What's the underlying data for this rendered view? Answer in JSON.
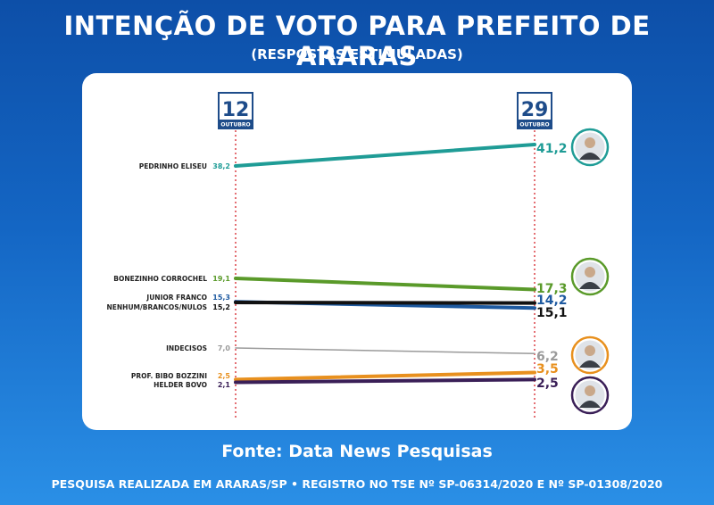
{
  "header": {
    "title": "INTENÇÃO DE VOTO PARA PREFEITO DE ARARAS",
    "subtitle": "(RESPOSTAS ESTIMULADAS)"
  },
  "chart_data": {
    "type": "line",
    "x": [
      {
        "day": "12",
        "month": "OUTUBRO"
      },
      {
        "day": "29",
        "month": "OUTUBRO"
      }
    ],
    "series": [
      {
        "name": "PEDRINHO ELISEU",
        "values": [
          38.2,
          41.2
        ],
        "labels": [
          "38,2",
          "41,2"
        ],
        "color": "#1f9c96",
        "has_photo": true,
        "photo_icon": "candidate-photo-icon"
      },
      {
        "name": "BONEZINHO CORROCHEL",
        "values": [
          19.1,
          17.3
        ],
        "labels": [
          "19,1",
          "17,3"
        ],
        "color": "#5a9a2a",
        "has_photo": true,
        "photo_icon": "candidate-photo-icon"
      },
      {
        "name": "JUNIOR FRANCO",
        "values": [
          15.3,
          14.2
        ],
        "labels": [
          "15,3",
          "14,2"
        ],
        "color": "#1e5aa0",
        "has_photo": true,
        "photo_icon": "candidate-photo-icon"
      },
      {
        "name": "NENHUM/BRANCOS/NULOS",
        "values": [
          15.2,
          15.1
        ],
        "labels": [
          "15,2",
          "15,1"
        ],
        "color": "#111111",
        "has_photo": false
      },
      {
        "name": "INDECISOS",
        "values": [
          7.0,
          6.2
        ],
        "labels": [
          "7,0",
          "6,2"
        ],
        "color": "#9a9a9a",
        "has_photo": false
      },
      {
        "name": "PROF. BIBO BOZZINI",
        "values": [
          2.5,
          3.5
        ],
        "labels": [
          "2,5",
          "3,5"
        ],
        "color": "#e8901e",
        "has_photo": true,
        "photo_icon": "candidate-photo-icon"
      },
      {
        "name": "HELDER BOVO",
        "values": [
          2.1,
          2.5
        ],
        "labels": [
          "2,1",
          "2,5"
        ],
        "color": "#3a1f57",
        "has_photo": true,
        "photo_icon": "candidate-photo-icon"
      }
    ],
    "axis_line_color": "#d9343a",
    "box_color": "#1e4c8a"
  },
  "footer": {
    "source": "Fonte: Data News Pesquisas",
    "note": "PESQUISA REALIZADA EM ARARAS/SP • REGISTRO NO TSE Nº SP-06314/2020 E Nº SP-01308/2020"
  }
}
